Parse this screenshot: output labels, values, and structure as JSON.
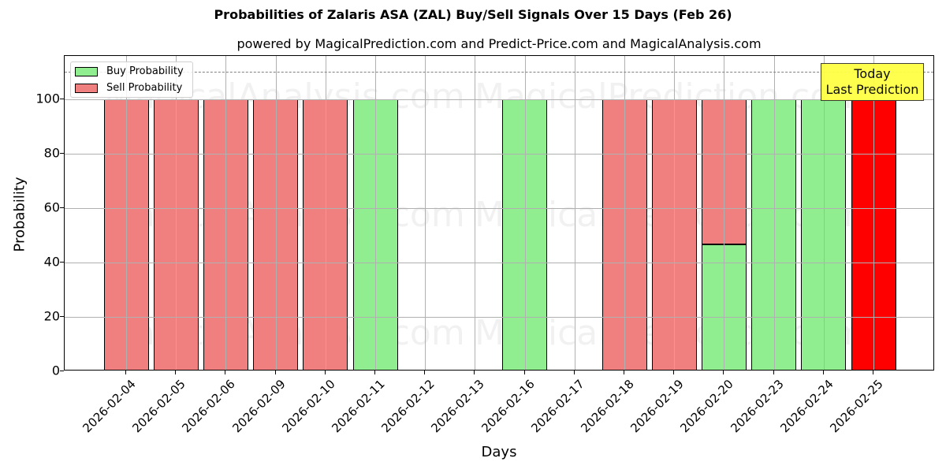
{
  "title": "Probabilities of Zalaris ASA (ZAL) Buy/Sell Signals Over 15 Days (Feb 26)",
  "subtitle": "powered by MagicalPrediction.com and Predict-Price.com and MagicalAnalysis.com",
  "legend": {
    "buy_label": "Buy Probability",
    "sell_label": "Sell Probability"
  },
  "annotation": {
    "line1": "Today",
    "line2": "Last Prediction"
  },
  "axes": {
    "xlabel": "Days",
    "ylabel": "Probability",
    "yticks": [
      "0",
      "20",
      "40",
      "60",
      "80",
      "100"
    ]
  },
  "watermarks": [
    "MagicalAnalysis.com",
    "MagicalPrediction.com"
  ],
  "colors": {
    "buy": "#90ee90",
    "sell": "#f08080",
    "today": "#ff0000",
    "annotation_bg": "#ffff44"
  },
  "chart_data": {
    "type": "bar",
    "stacked": true,
    "title": "Probabilities of Zalaris ASA (ZAL) Buy/Sell Signals Over 15 Days (Feb 26)",
    "subtitle": "powered by MagicalPrediction.com and Predict-Price.com and MagicalAnalysis.com",
    "xlabel": "Days",
    "ylabel": "Probability",
    "ylim": [
      0,
      115.8
    ],
    "grid": true,
    "legend_position": "upper left",
    "reference_line": {
      "y": 110,
      "style": "dashed",
      "color": "#808080"
    },
    "annotations": [
      {
        "text": "Today\nLast Prediction",
        "x": "2026-02-25",
        "y": 110
      }
    ],
    "categories": [
      "2026-02-04",
      "2026-02-05",
      "2026-02-06",
      "2026-02-09",
      "2026-02-10",
      "2026-02-11",
      "2026-02-12",
      "2026-02-13",
      "2026-02-16",
      "2026-02-17",
      "2026-02-18",
      "2026-02-19",
      "2026-02-20",
      "2026-02-23",
      "2026-02-24",
      "2026-02-25"
    ],
    "series": [
      {
        "name": "Buy Probability",
        "color": "#90ee90",
        "values": [
          0,
          0,
          0,
          0,
          0,
          100,
          0,
          0,
          100,
          0,
          0,
          0,
          46.5,
          100,
          100,
          0
        ]
      },
      {
        "name": "Sell Probability",
        "color": "#f08080",
        "values": [
          100,
          100,
          100,
          100,
          100,
          0,
          0,
          0,
          0,
          0,
          100,
          100,
          53.5,
          0,
          0,
          100
        ]
      }
    ],
    "highlight": {
      "category": "2026-02-25",
      "color": "#ff0000",
      "note": "Today / Last Prediction"
    }
  }
}
